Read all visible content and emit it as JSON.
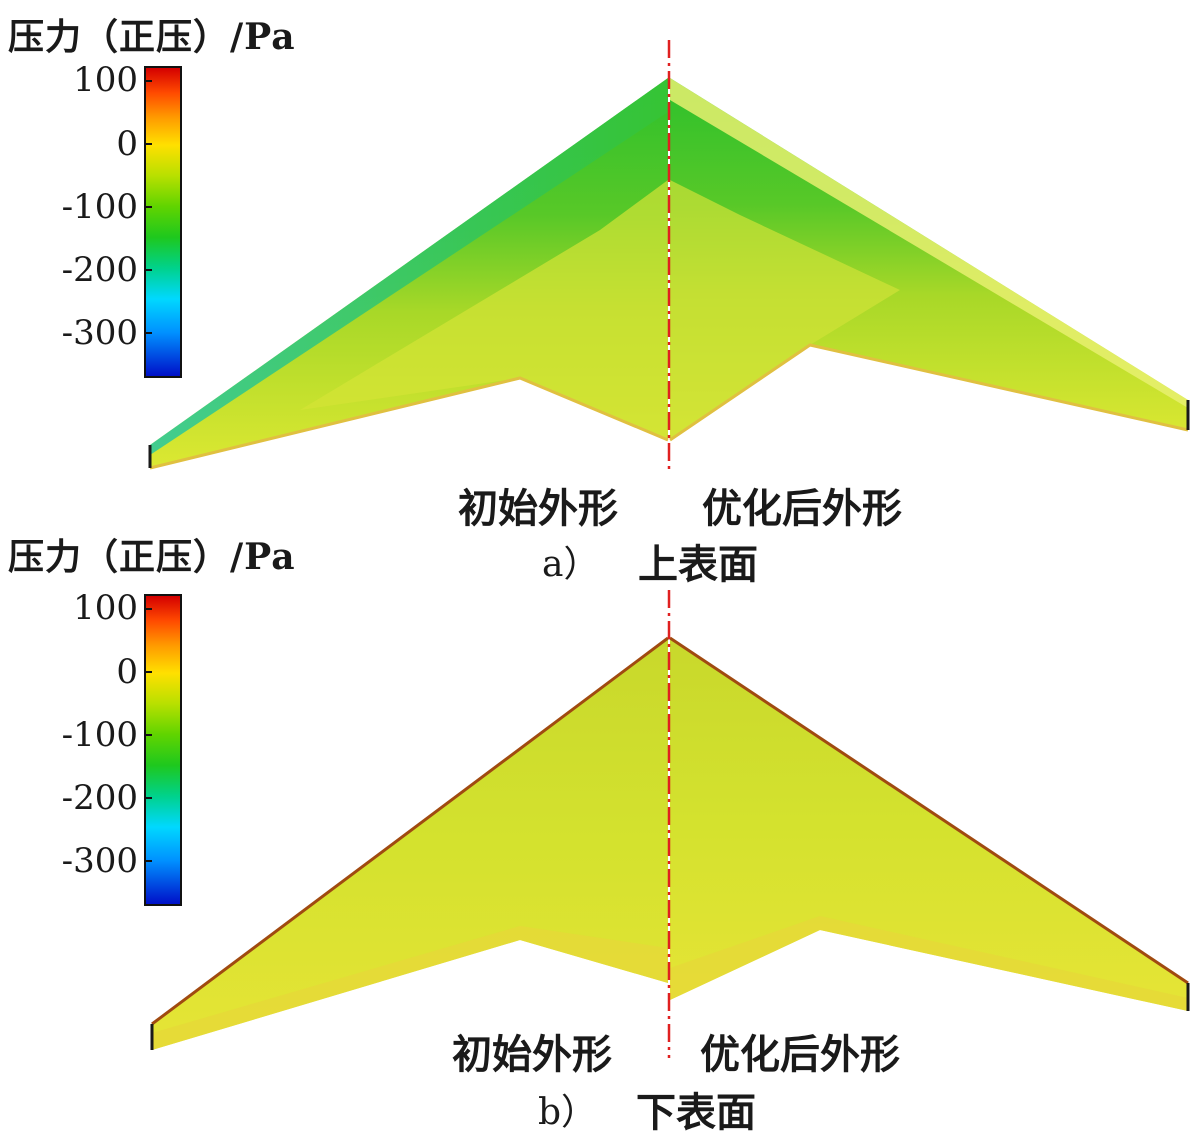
{
  "colorbar": {
    "title": "压力（正压）/Pa",
    "ticks": [
      "100",
      "0",
      "-100",
      "-200",
      "-300"
    ],
    "colors": [
      "#d40000",
      "#ff9a00",
      "#ffe000",
      "#60d400",
      "#00d8ff",
      "#0010c8"
    ]
  },
  "panels": [
    {
      "caption_letter": "a）",
      "caption_text": "上表面",
      "left_label": "初始外形",
      "right_label": "优化后外形",
      "surface_color_main": "#c8e030",
      "surface_color_leading": "#30c030"
    },
    {
      "caption_letter": "b）",
      "caption_text": "下表面",
      "left_label": "初始外形",
      "right_label": "优化后外形",
      "surface_color_main": "#d6e42c",
      "surface_color_leading": "#c8d830"
    }
  ]
}
